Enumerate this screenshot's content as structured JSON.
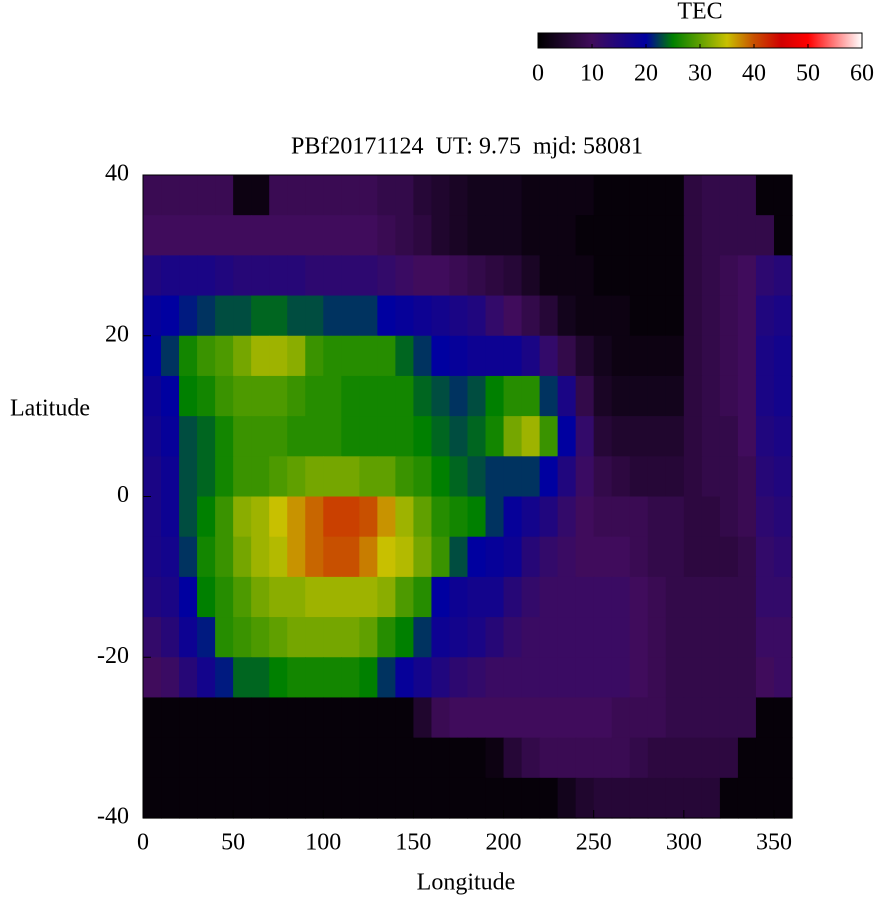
{
  "chart_data": {
    "type": "heatmap",
    "title": "PBf20171124  UT: 9.75  mjd: 58081",
    "x_label": "Longitude",
    "y_label": "Latitude",
    "xlim": [
      0,
      360
    ],
    "ylim": [
      -40,
      40
    ],
    "xticks": [
      0,
      50,
      100,
      150,
      200,
      250,
      300,
      350
    ],
    "yticks": [
      -40,
      -20,
      0,
      20,
      40
    ],
    "x": [
      5,
      15,
      25,
      35,
      45,
      55,
      65,
      75,
      85,
      95,
      105,
      115,
      125,
      135,
      145,
      155,
      165,
      175,
      185,
      195,
      205,
      215,
      225,
      235,
      245,
      255,
      265,
      275,
      285,
      295,
      305,
      315,
      325,
      335,
      345,
      355
    ],
    "y": [
      37.5,
      32.5,
      27.5,
      22.5,
      17.5,
      12.5,
      7.5,
      2.5,
      -2.5,
      -7.5,
      -12.5,
      -17.5,
      -22.5,
      -27.5,
      -32.5,
      -37.5
    ],
    "z": [
      [
        9,
        9,
        9,
        9,
        9,
        2,
        2,
        9,
        9,
        9,
        9,
        9,
        9,
        8,
        8,
        6,
        5,
        4,
        3,
        3,
        3,
        2,
        2,
        2,
        2,
        1,
        1,
        1,
        1,
        1,
        7,
        8,
        8,
        8,
        1,
        1
      ],
      [
        10,
        10,
        10,
        10,
        10,
        10,
        10,
        10,
        10,
        10,
        10,
        10,
        10,
        9,
        8,
        7,
        5,
        4,
        3,
        3,
        3,
        2,
        2,
        2,
        1,
        1,
        1,
        1,
        1,
        1,
        7,
        8,
        8,
        8,
        8,
        1
      ],
      [
        15,
        16,
        16,
        16,
        15,
        14,
        14,
        14,
        14,
        13,
        13,
        13,
        13,
        12,
        11,
        10,
        10,
        9,
        8,
        7,
        6,
        4,
        2,
        2,
        2,
        1,
        1,
        1,
        1,
        1,
        7,
        8,
        9,
        10,
        13,
        14
      ],
      [
        19,
        20,
        21,
        22,
        23,
        23,
        24,
        24,
        23,
        23,
        22,
        22,
        22,
        20,
        19,
        18,
        17,
        16,
        15,
        12,
        10,
        8,
        6,
        3,
        2,
        2,
        2,
        1,
        1,
        1,
        7,
        8,
        9,
        10,
        15,
        16
      ],
      [
        20,
        22,
        26,
        28,
        29,
        31,
        33,
        33,
        32,
        28,
        27,
        27,
        27,
        27,
        24,
        22,
        20,
        19,
        18,
        18,
        18,
        16,
        12,
        8,
        5,
        3,
        2,
        2,
        2,
        2,
        7,
        8,
        9,
        10,
        16,
        17
      ],
      [
        18,
        20,
        25,
        26,
        28,
        29,
        29,
        29,
        28,
        27,
        27,
        26,
        26,
        26,
        26,
        24,
        23,
        22,
        23,
        25,
        27,
        27,
        22,
        16,
        8,
        4,
        3,
        3,
        3,
        3,
        7,
        8,
        9,
        10,
        16,
        17
      ],
      [
        17,
        19,
        23,
        24,
        26,
        28,
        28,
        28,
        27,
        27,
        27,
        26,
        26,
        26,
        26,
        25,
        24,
        23,
        24,
        26,
        31,
        33,
        28,
        20,
        12,
        6,
        5,
        5,
        5,
        5,
        7,
        8,
        8,
        10,
        15,
        16
      ],
      [
        16,
        18,
        23,
        24,
        26,
        28,
        28,
        29,
        30,
        31,
        31,
        31,
        30,
        30,
        28,
        27,
        25,
        24,
        23,
        22,
        22,
        22,
        20,
        15,
        11,
        8,
        7,
        6,
        6,
        6,
        7,
        8,
        8,
        9,
        14,
        15
      ],
      [
        16,
        18,
        23,
        25,
        28,
        32,
        33,
        35,
        37,
        39,
        41,
        41,
        40,
        37,
        33,
        30,
        27,
        26,
        25,
        22,
        19,
        17,
        15,
        12,
        10,
        9,
        9,
        9,
        8,
        8,
        7,
        7,
        8,
        9,
        13,
        14
      ],
      [
        16,
        17,
        22,
        26,
        28,
        31,
        33,
        34,
        37,
        39,
        40,
        40,
        38,
        35,
        34,
        31,
        28,
        23,
        20,
        19,
        18,
        14,
        12,
        11,
        10,
        10,
        10,
        9,
        8,
        8,
        7,
        7,
        7,
        8,
        12,
        13
      ],
      [
        15,
        16,
        20,
        25,
        27,
        29,
        31,
        32,
        32,
        33,
        33,
        33,
        33,
        32,
        29,
        27,
        20,
        18,
        17,
        17,
        14,
        12,
        11,
        11,
        11,
        11,
        11,
        10,
        9,
        8,
        8,
        8,
        8,
        8,
        12,
        12
      ],
      [
        12,
        14,
        18,
        21,
        27,
        28,
        29,
        30,
        31,
        31,
        31,
        31,
        30,
        27,
        25,
        22,
        18,
        17,
        16,
        14,
        12,
        11,
        11,
        11,
        11,
        11,
        11,
        10,
        9,
        8,
        8,
        8,
        8,
        8,
        11,
        11
      ],
      [
        10,
        11,
        14,
        17,
        21,
        24,
        24,
        25,
        26,
        26,
        26,
        26,
        25,
        22,
        19,
        17,
        15,
        13,
        12,
        11,
        11,
        11,
        11,
        11,
        11,
        11,
        11,
        10,
        9,
        8,
        8,
        8,
        8,
        8,
        10,
        11
      ],
      [
        1,
        1,
        1,
        1,
        1,
        1,
        1,
        1,
        1,
        1,
        1,
        1,
        1,
        1,
        1,
        5,
        9,
        10,
        10,
        10,
        10,
        10,
        10,
        10,
        10,
        10,
        9,
        9,
        9,
        8,
        8,
        8,
        8,
        8,
        1,
        1
      ],
      [
        1,
        1,
        1,
        1,
        1,
        1,
        1,
        1,
        1,
        1,
        1,
        1,
        1,
        1,
        1,
        1,
        1,
        1,
        1,
        2,
        6,
        8,
        9,
        9,
        9,
        9,
        9,
        8,
        7,
        7,
        7,
        7,
        7,
        1,
        1,
        1
      ],
      [
        1,
        1,
        1,
        1,
        1,
        1,
        1,
        1,
        1,
        1,
        1,
        1,
        1,
        1,
        1,
        1,
        1,
        1,
        1,
        1,
        1,
        1,
        1,
        3,
        5,
        6,
        6,
        6,
        6,
        6,
        6,
        6,
        1,
        1,
        1,
        1
      ]
    ],
    "colorbar_label": "TEC",
    "cblim": [
      0,
      60
    ],
    "cbticks": [
      0,
      10,
      20,
      30,
      40,
      50,
      60
    ],
    "colorscale": [
      {
        "value": 0,
        "color": "#000000"
      },
      {
        "value": 10,
        "color": "#400c5c"
      },
      {
        "value": 20,
        "color": "#0000a0"
      },
      {
        "value": 25,
        "color": "#008000"
      },
      {
        "value": 30,
        "color": "#60a000"
      },
      {
        "value": 35,
        "color": "#c8c000"
      },
      {
        "value": 40,
        "color": "#c85000"
      },
      {
        "value": 45,
        "color": "#d00000"
      },
      {
        "value": 50,
        "color": "#ff0000"
      },
      {
        "value": 60,
        "color": "#ffffff"
      }
    ]
  }
}
